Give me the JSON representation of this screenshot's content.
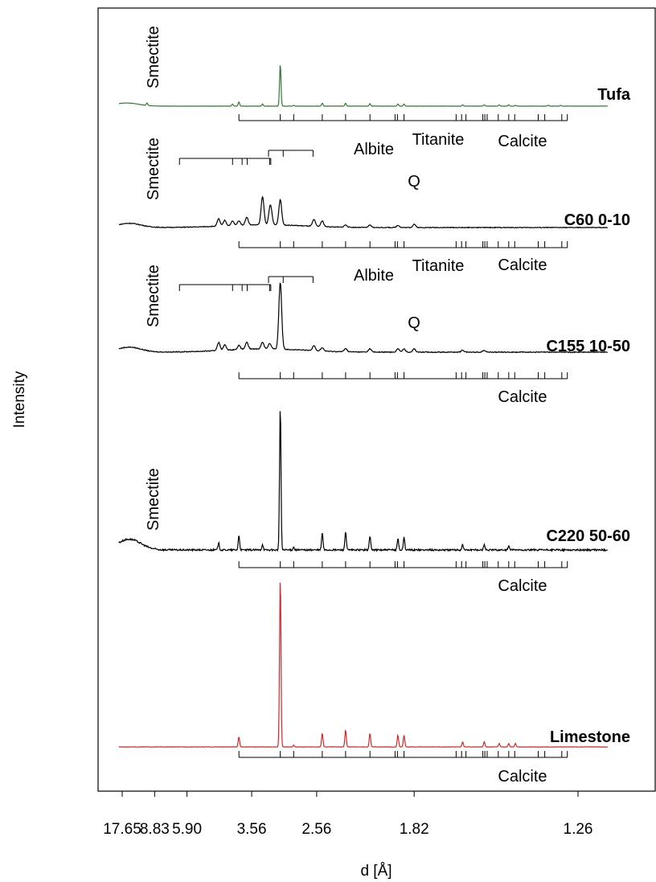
{
  "chart_data": {
    "type": "line",
    "title": "",
    "xlabel": "d [Å]",
    "ylabel": "Intensity",
    "x_scale": "2theta (ticks labeled as d-spacing)",
    "x_ticks": [
      "17.65",
      "8.83",
      "5.90",
      "3.56",
      "2.56",
      "1.82",
      "1.26"
    ],
    "grid": false,
    "legend": "none",
    "series": [
      {
        "name": "Tufa",
        "color": "#2e7d32",
        "broad_peaks": [
          {
            "d": 15.5,
            "label": "Smectite"
          }
        ],
        "peaks_d": [
          10.0,
          4.03,
          3.86,
          3.34,
          3.035,
          2.84,
          2.5,
          2.28,
          2.09,
          1.91,
          1.875,
          1.6,
          1.52,
          1.47,
          1.44,
          1.42,
          1.33,
          1.3
        ],
        "peaks_rel": [
          0.06,
          0.05,
          0.1,
          0.05,
          1.0,
          0.02,
          0.07,
          0.07,
          0.06,
          0.05,
          0.05,
          0.03,
          0.03,
          0.03,
          0.03,
          0.02,
          0.02,
          0.02
        ],
        "reference_marks": [
          "Calcite"
        ]
      },
      {
        "name": "C60 0-10",
        "color": "#000000",
        "broad_peaks": [
          {
            "d": 14.5,
            "label": "Smectite"
          }
        ],
        "peaks_d": [
          4.46,
          4.26,
          4.03,
          3.86,
          3.67,
          3.34,
          3.21,
          3.19,
          3.035,
          2.59,
          2.5,
          2.28,
          2.09,
          1.91,
          1.82
        ],
        "peaks_rel": [
          0.13,
          0.1,
          0.08,
          0.08,
          0.14,
          0.5,
          0.14,
          0.24,
          0.45,
          0.12,
          0.1,
          0.04,
          0.04,
          0.04,
          0.06
        ],
        "annotations": [
          "Q"
        ],
        "reference_marks": [
          "Albite",
          "Titanite",
          "Calcite"
        ]
      },
      {
        "name": "C155 10-50",
        "color": "#000000",
        "broad_peaks": [
          {
            "d": 14.5,
            "label": "Smectite"
          }
        ],
        "peaks_d": [
          4.46,
          4.26,
          3.86,
          3.67,
          3.34,
          3.21,
          3.035,
          2.59,
          2.5,
          2.28,
          2.09,
          1.91,
          1.875,
          1.82,
          1.6,
          1.52
        ],
        "peaks_rel": [
          0.12,
          0.08,
          0.06,
          0.1,
          0.1,
          0.08,
          1.0,
          0.08,
          0.05,
          0.05,
          0.05,
          0.05,
          0.05,
          0.05,
          0.03,
          0.03
        ],
        "annotations": [
          "Q"
        ],
        "reference_marks": [
          "Albite",
          "Titanite",
          "Calcite"
        ]
      },
      {
        "name": "C220 50-60",
        "color": "#000000",
        "broad_peaks": [
          {
            "d": 14.5,
            "label": "Smectite"
          }
        ],
        "peaks_d": [
          4.46,
          3.86,
          3.34,
          3.035,
          2.84,
          2.5,
          2.28,
          2.09,
          1.91,
          1.875,
          1.6,
          1.52,
          1.44
        ],
        "peaks_rel": [
          0.05,
          0.1,
          0.04,
          1.0,
          0.02,
          0.12,
          0.13,
          0.1,
          0.08,
          0.09,
          0.04,
          0.04,
          0.03
        ],
        "reference_marks": [
          "Calcite"
        ]
      },
      {
        "name": "Limestone",
        "color": "#d62728",
        "broad_peaks": [],
        "peaks_d": [
          3.86,
          3.035,
          2.84,
          2.5,
          2.28,
          2.09,
          1.91,
          1.875,
          1.6,
          1.52,
          1.47,
          1.44,
          1.42
        ],
        "peaks_rel": [
          0.06,
          1.0,
          0.01,
          0.08,
          0.1,
          0.08,
          0.07,
          0.07,
          0.03,
          0.03,
          0.02,
          0.02,
          0.02
        ],
        "reference_marks": [
          "Calcite"
        ]
      }
    ],
    "reference_patterns": {
      "Calcite": [
        3.86,
        3.035,
        2.84,
        2.5,
        2.28,
        2.09,
        1.927,
        1.913,
        1.875,
        1.626,
        1.604,
        1.587,
        1.525,
        1.518,
        1.51,
        1.473,
        1.44,
        1.422,
        1.356,
        1.339,
        1.297,
        1.284
      ],
      "Albite": [
        6.39,
        4.03,
        3.78,
        3.66,
        3.21,
        3.19
      ],
      "Titanite": [
        3.23,
        2.99,
        2.6
      ]
    },
    "annotations": [
      "Smectite",
      "Albite",
      "Titanite",
      "Calcite",
      "Q"
    ]
  }
}
